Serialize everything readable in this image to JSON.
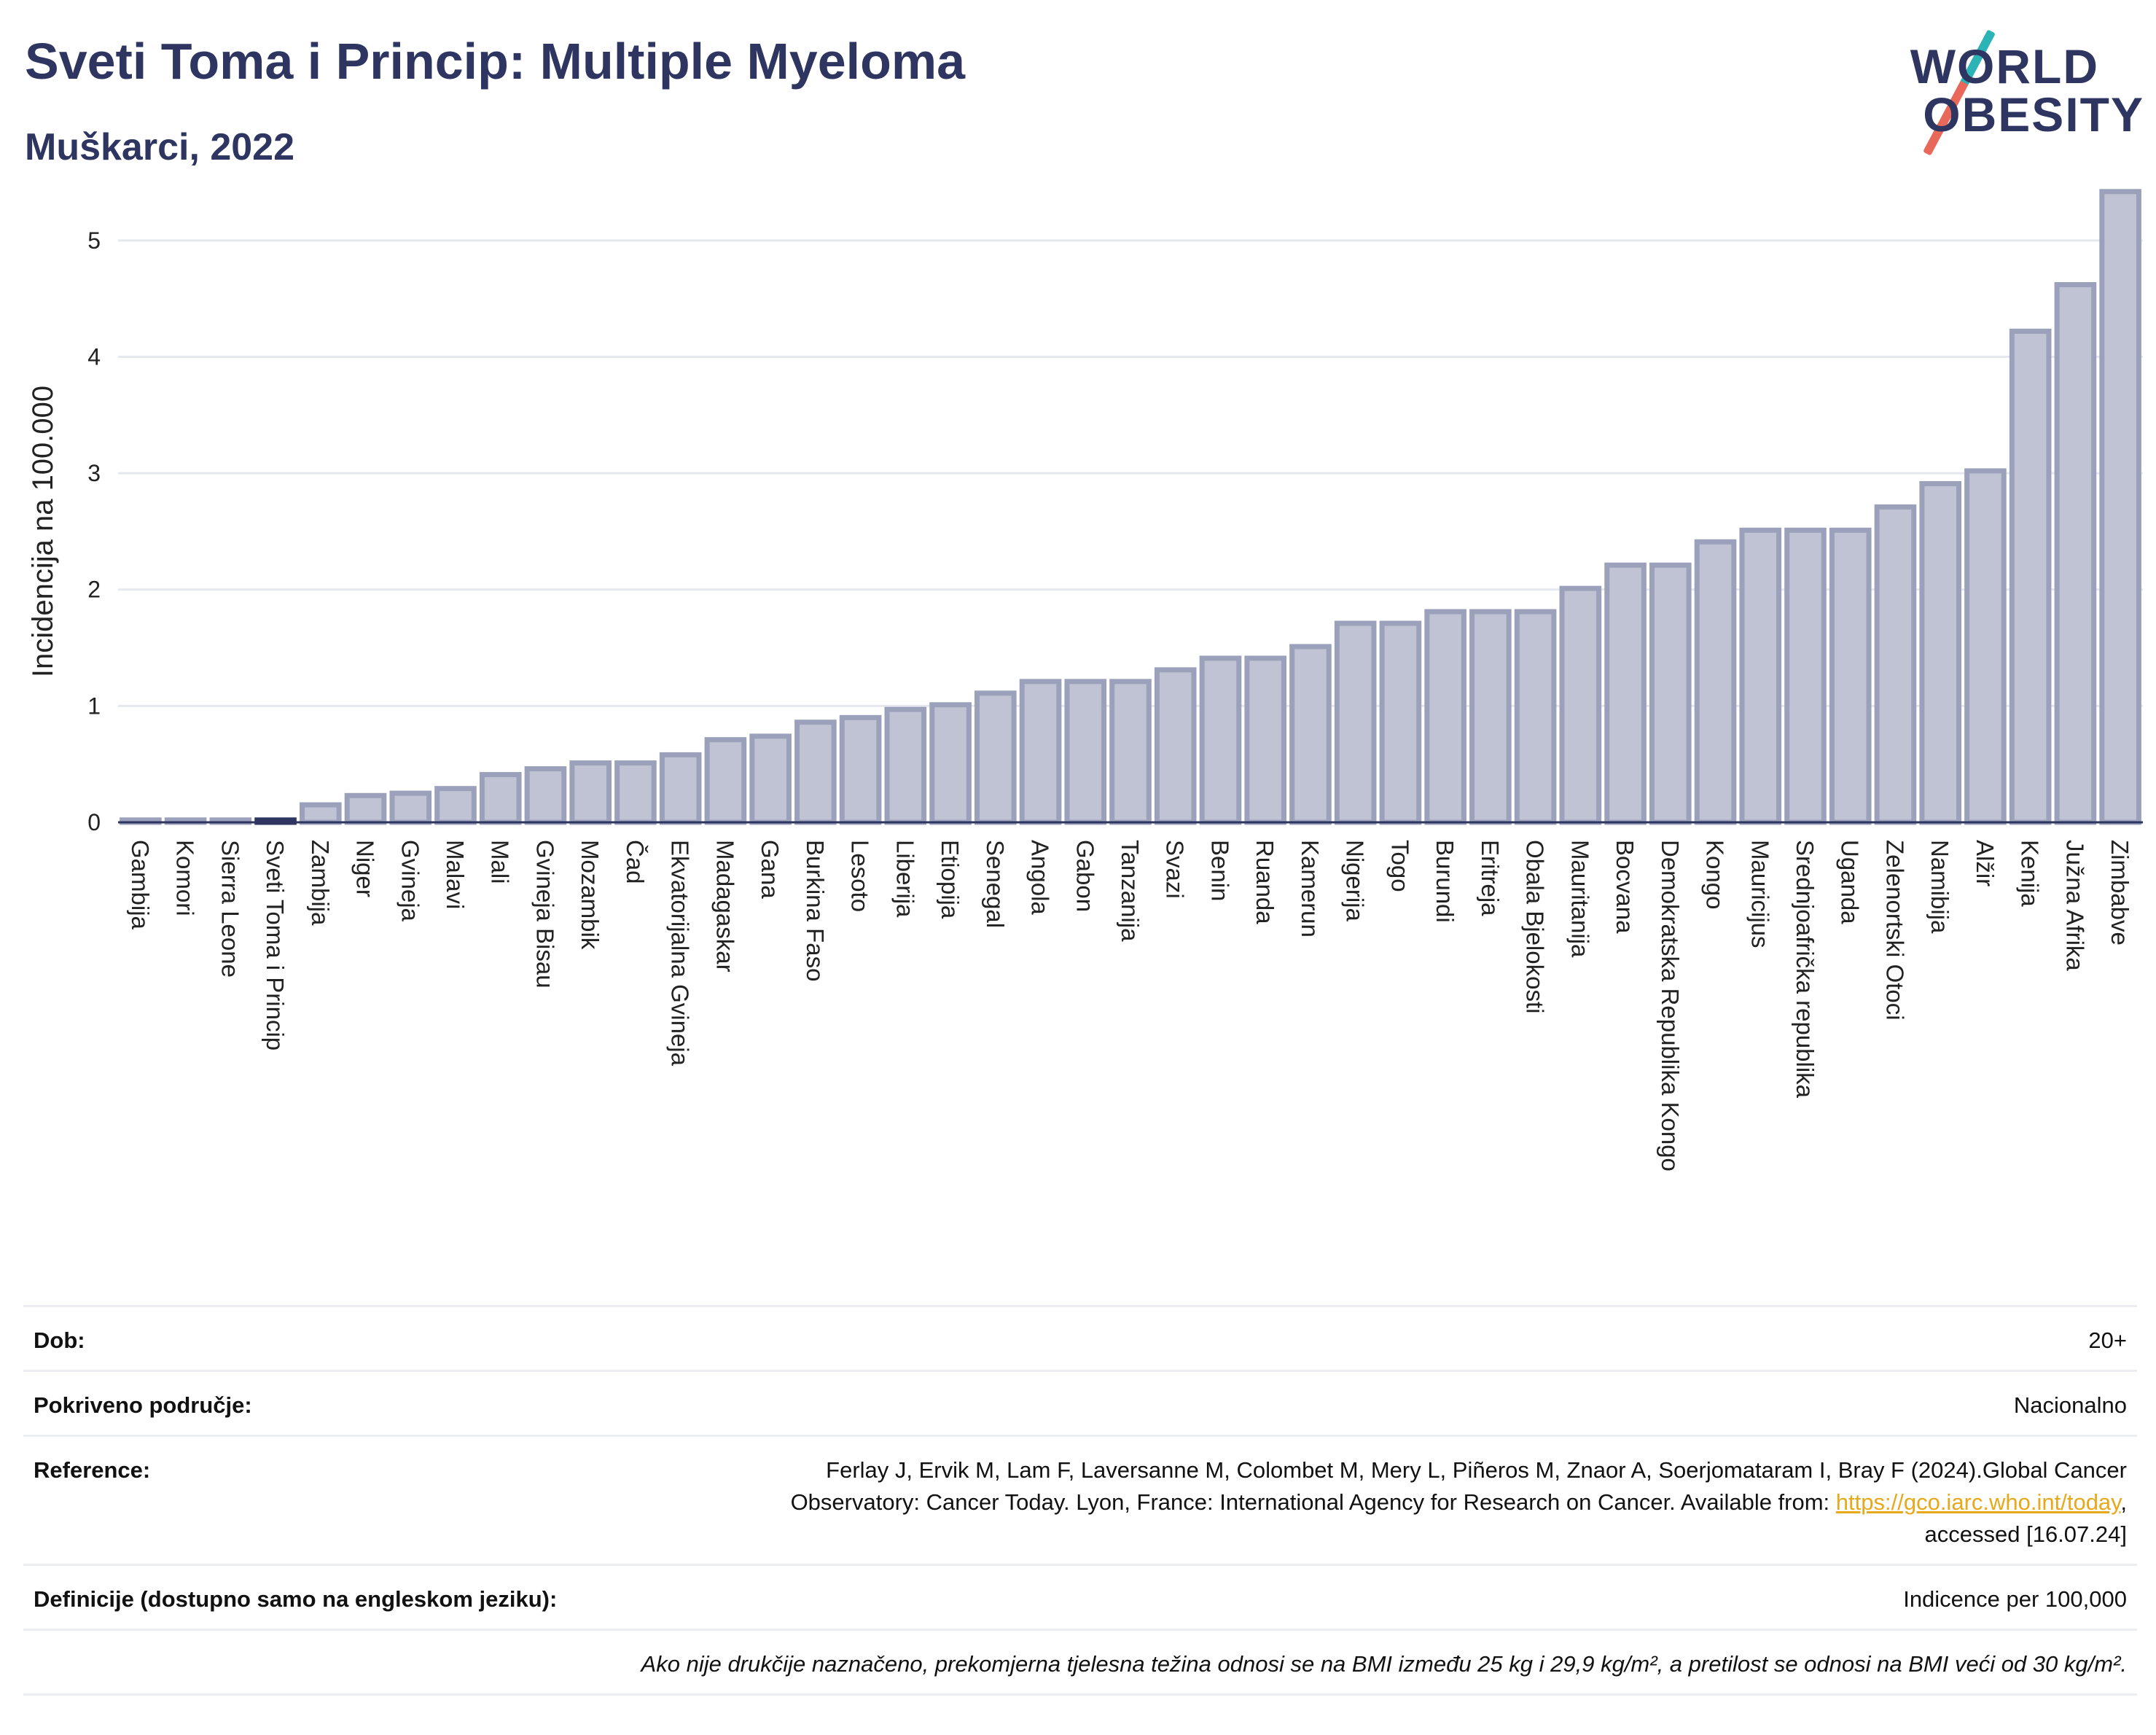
{
  "header": {
    "title": "Sveti Toma i Princip: Multiple Myeloma",
    "subtitle": "Muškarci, 2022"
  },
  "logo": {
    "line1": "WORLD",
    "line2": "OBESITY",
    "colors": {
      "text": "#2d3560",
      "slash_top": "#2bb3b5",
      "slash_bottom": "#e8685a"
    }
  },
  "chart_data": {
    "type": "bar",
    "ylabel": "Incidencija na 100.000",
    "ylim": [
      0,
      5.5
    ],
    "yticks": [
      0,
      1,
      2,
      3,
      4,
      5
    ],
    "grid": true,
    "highlight": "Sveti Toma i Princip",
    "colors": {
      "bar": "#bfc3d3",
      "bar_edge": "#9ba1bb",
      "highlight": "#2d3560"
    },
    "categories": [
      "Gambija",
      "Komori",
      "Sierra Leone",
      "Sveti Toma i Princip",
      "Zambija",
      "Niger",
      "Gvineja",
      "Malavi",
      "Mali",
      "Gvineja Bisau",
      "Mozambik",
      "Čad",
      "Ekvatorijalna Gvineja",
      "Madagaskar",
      "Gana",
      "Burkina Faso",
      "Lesoto",
      "Liberija",
      "Etiopija",
      "Senegal",
      "Angola",
      "Gabon",
      "Tanzanija",
      "Svazi",
      "Benin",
      "Ruanda",
      "Kamerun",
      "Nigerija",
      "Togo",
      "Burundi",
      "Eritreja",
      "Obala Bjelokosti",
      "Mauritanija",
      "Bocvana",
      "Demokratska Republika Kongo",
      "Kongo",
      "Mauricijus",
      "Srednjoafrička republika",
      "Uganda",
      "Zelenortski Otoci",
      "Namibija",
      "Alžir",
      "Kenija",
      "Južna Afrika",
      "Zimbabve"
    ],
    "values": [
      0.02,
      0.02,
      0.02,
      0.02,
      0.15,
      0.23,
      0.25,
      0.29,
      0.41,
      0.46,
      0.51,
      0.51,
      0.58,
      0.71,
      0.74,
      0.86,
      0.9,
      0.97,
      1.01,
      1.11,
      1.21,
      1.21,
      1.21,
      1.31,
      1.41,
      1.41,
      1.51,
      1.71,
      1.71,
      1.81,
      1.81,
      1.81,
      2.01,
      2.21,
      2.21,
      2.41,
      2.51,
      2.51,
      2.51,
      2.71,
      2.91,
      3.02,
      4.22,
      4.62,
      5.42
    ]
  },
  "info": {
    "rows": [
      {
        "label": "Dob:",
        "value": "20+"
      },
      {
        "label": "Pokriveno područje:",
        "value": "Nacionalno"
      },
      {
        "label": "Reference:",
        "value_line1": "Ferlay J, Ervik M, Lam F, Laversanne M, Colombet M, Mery L, Piñeros M, Znaor A, Soerjomataram I, Bray F (2024).Global Cancer",
        "value_line2_pre": "Observatory: Cancer Today. Lyon, France: International Agency for Research on Cancer. Available from: ",
        "link": "https://gco.iarc.who.int/today",
        "value_line2_post": ",",
        "value_line3": "accessed [16.07.24]"
      },
      {
        "label": "Definicije (dostupno samo na engleskom jeziku):",
        "value": "Indicence per 100,000"
      }
    ],
    "note": "Ako nije drukčije naznačeno, prekomjerna tjelesna težina odnosi se na BMI između 25 kg i 29,9 kg/m², a pretilost se odnosi na BMI veći od 30 kg/m²."
  }
}
